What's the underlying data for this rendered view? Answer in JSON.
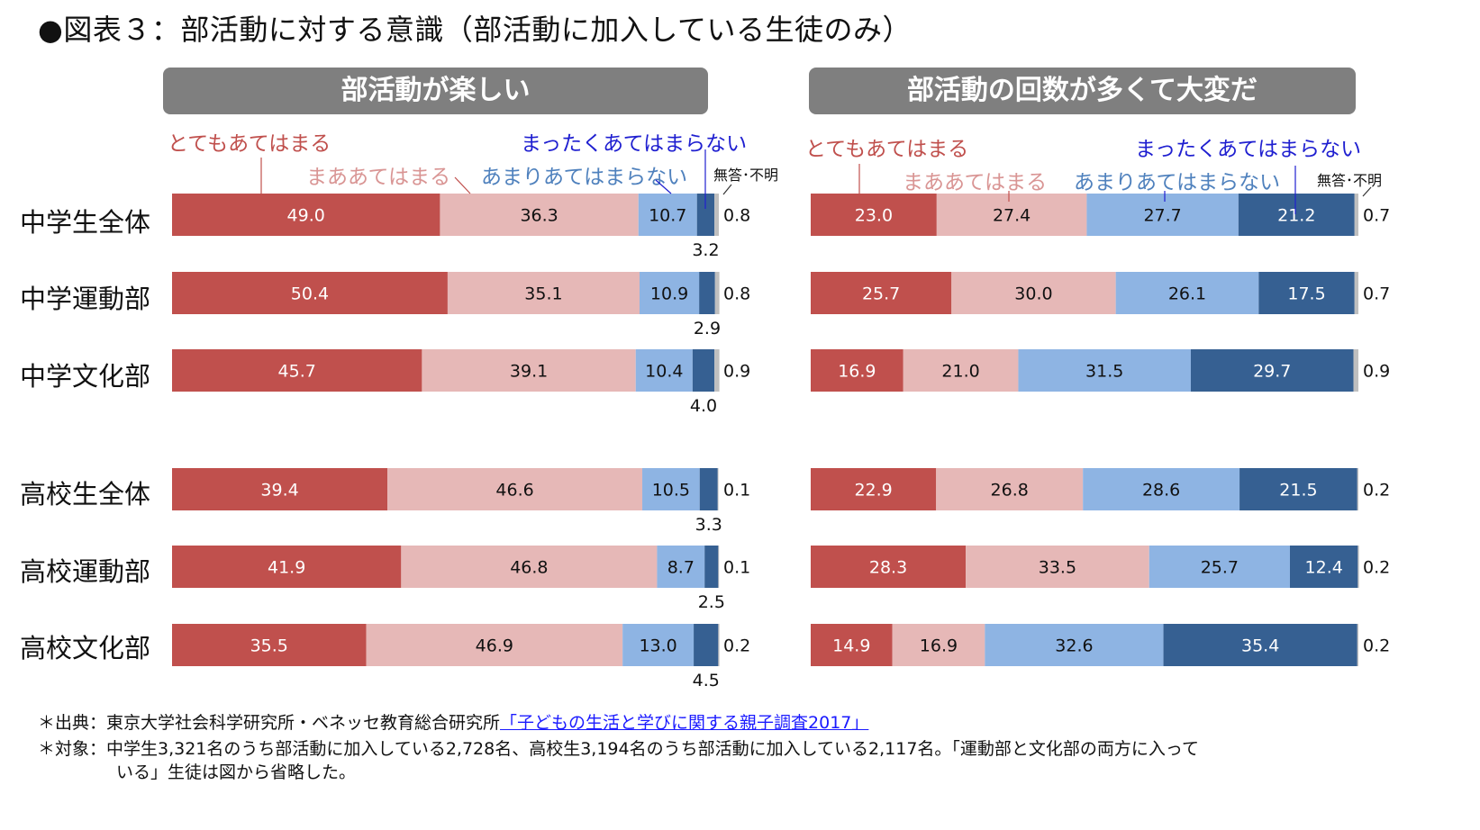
{
  "title": "●図表３：部活動に対する意識（部活動に加入している生徒のみ）",
  "legend": {
    "totemo": "とてもあてはまる",
    "maa": "まああてはまる",
    "amari": "あまりあてはまらない",
    "mattaku": "まったくあてはまらない",
    "na": "無答･不明"
  },
  "row_labels": [
    "中学生全体",
    "中学運動部",
    "中学文化部",
    "高校生全体",
    "高校運動部",
    "高校文化部"
  ],
  "colors": {
    "totemo": "#c0504d",
    "maa": "#e6b8b7",
    "amari": "#8eb4e3",
    "mattaku": "#366092",
    "na": "#bfbfbf",
    "legend_totemo": "#c0504d",
    "legend_maa": "#d99594",
    "legend_amari": "#4f81bd",
    "legend_mattaku": "#1f1fd0",
    "panel_header_bg": "#7f7f7f"
  },
  "chart_data": [
    {
      "type": "bar",
      "orientation": "horizontal-stacked-100",
      "title": "部活動が楽しい",
      "categories": [
        "中学生全体",
        "中学運動部",
        "中学文化部",
        "高校生全体",
        "高校運動部",
        "高校文化部"
      ],
      "series": [
        {
          "name": "とてもあてはまる",
          "values": [
            49.0,
            50.4,
            45.7,
            39.4,
            41.9,
            35.5
          ]
        },
        {
          "name": "まああてはまる",
          "values": [
            36.3,
            35.1,
            39.1,
            46.6,
            46.8,
            46.9
          ]
        },
        {
          "name": "あまりあてはまらない",
          "values": [
            10.7,
            10.9,
            10.4,
            10.5,
            8.7,
            13.0
          ]
        },
        {
          "name": "まったくあてはまらない",
          "values": [
            3.2,
            2.9,
            4.0,
            3.3,
            2.5,
            4.5
          ]
        },
        {
          "name": "無答･不明",
          "values": [
            0.8,
            0.8,
            0.9,
            0.1,
            0.1,
            0.2
          ]
        }
      ],
      "xlim": [
        0,
        100
      ],
      "unit": "%"
    },
    {
      "type": "bar",
      "orientation": "horizontal-stacked-100",
      "title": "部活動の回数が多くて大変だ",
      "categories": [
        "中学生全体",
        "中学運動部",
        "中学文化部",
        "高校生全体",
        "高校運動部",
        "高校文化部"
      ],
      "series": [
        {
          "name": "とてもあてはまる",
          "values": [
            23.0,
            25.7,
            16.9,
            22.9,
            28.3,
            14.9
          ]
        },
        {
          "name": "まああてはまる",
          "values": [
            27.4,
            30.0,
            21.0,
            26.8,
            33.5,
            16.9
          ]
        },
        {
          "name": "あまりあてはまらない",
          "values": [
            27.7,
            26.1,
            31.5,
            28.6,
            25.7,
            32.6
          ]
        },
        {
          "name": "まったくあてはまらない",
          "values": [
            21.2,
            17.5,
            29.7,
            21.5,
            12.4,
            35.4
          ]
        },
        {
          "name": "無答･不明",
          "values": [
            0.7,
            0.7,
            0.9,
            0.2,
            0.2,
            0.2
          ]
        }
      ],
      "xlim": [
        0,
        100
      ],
      "unit": "%"
    }
  ],
  "footer": {
    "source_prefix": "＊出典：東京大学社会科学研究所・ベネッセ教育総合研究所",
    "source_link": "「子どもの生活と学びに関する親子調査2017」",
    "target_line1": "＊対象：中学生3,321名のうち部活動に加入している2,728名、高校生3,194名のうち部活動に加入している2,117名。「運動部と文化部の両方に入って",
    "target_line2": "いる」生徒は図から省略した。"
  }
}
